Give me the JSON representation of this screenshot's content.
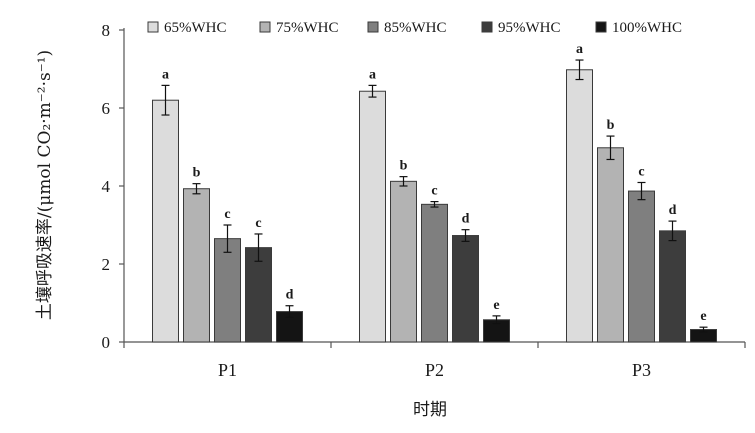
{
  "chart_data": {
    "type": "bar",
    "categories": [
      "P1",
      "P2",
      "P3"
    ],
    "xlabel": "时期",
    "ylabel": "土壤呼吸速率/(μmol CO₂·m⁻²·s⁻¹)",
    "ylim": [
      0,
      8
    ],
    "yticks": [
      "0",
      "2",
      "4",
      "6",
      "8"
    ],
    "legend_position": "top",
    "series": [
      {
        "name": "65%WHC",
        "color": "#dcdcdc",
        "values": [
          6.2,
          6.43,
          6.98
        ],
        "errors": [
          0.38,
          0.15,
          0.25
        ],
        "letters": [
          "a",
          "a",
          "a"
        ]
      },
      {
        "name": "75%WHC",
        "color": "#b3b3b3",
        "values": [
          3.93,
          4.12,
          4.98
        ],
        "errors": [
          0.13,
          0.12,
          0.3
        ],
        "letters": [
          "b",
          "b",
          "b"
        ]
      },
      {
        "name": "85%WHC",
        "color": "#7f7f7f",
        "values": [
          2.65,
          3.53,
          3.87
        ],
        "errors": [
          0.35,
          0.07,
          0.22
        ],
        "letters": [
          "c",
          "c",
          "c"
        ]
      },
      {
        "name": "95%WHC",
        "color": "#3d3d3d",
        "values": [
          2.42,
          2.73,
          2.85
        ],
        "errors": [
          0.35,
          0.15,
          0.25
        ],
        "letters": [
          "c",
          "d",
          "d"
        ]
      },
      {
        "name": "100%WHC",
        "color": "#141414",
        "values": [
          0.78,
          0.57,
          0.32
        ],
        "errors": [
          0.15,
          0.1,
          0.06
        ],
        "letters": [
          "d",
          "e",
          "e"
        ]
      }
    ]
  }
}
